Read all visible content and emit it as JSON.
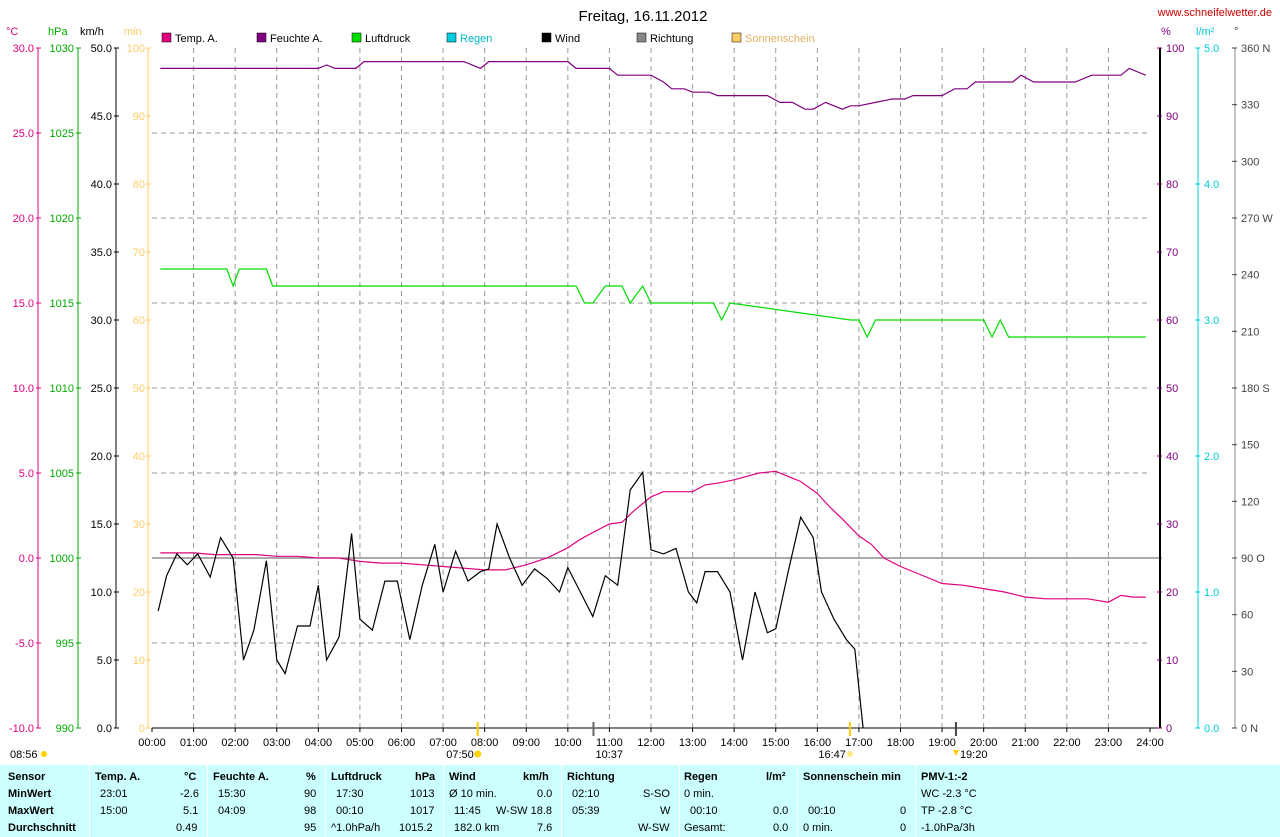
{
  "title": "Freitag, 16.11.2012",
  "site": "www.schneifelwetter.de",
  "colors": {
    "temp": "#e0007f",
    "hum": "#800080",
    "press": "#00dd00",
    "rain": "#00ccdd",
    "wind": "#000000",
    "dir": "#888888",
    "sun": "#ffcc66",
    "site": "#cc0000",
    "table_bg": "#ccffff"
  },
  "units": {
    "temp": "°C",
    "press": "hPa",
    "wind": "km/h",
    "sun": "min",
    "hum": "%",
    "rain": "l/m²",
    "dir": "°"
  },
  "legend": [
    {
      "label": "Temp. A.",
      "color": "#e0007f"
    },
    {
      "label": "Feuchte A.",
      "color": "#800080"
    },
    {
      "label": "Luftdruck",
      "color": "#00dd00"
    },
    {
      "label": "Regen",
      "color": "#00ccdd"
    },
    {
      "label": "Wind",
      "color": "#000000"
    },
    {
      "label": "Richtung",
      "color": "#888888"
    },
    {
      "label": "Sonnenschein",
      "color": "#ffcc66"
    }
  ],
  "axis_labels": {
    "temp": [
      "30.0",
      "25.0",
      "20.0",
      "15.0",
      "10.0",
      "5.0",
      "0.0",
      "-5.0",
      "-10.0"
    ],
    "press": [
      "1030",
      "1025",
      "1020",
      "1015",
      "1010",
      "1005",
      "1000",
      "995",
      "990"
    ],
    "wind": [
      "50.0",
      "45.0",
      "40.0",
      "35.0",
      "30.0",
      "25.0",
      "20.0",
      "15.0",
      "10.0",
      "5.0",
      "0.0"
    ],
    "sun": [
      "100",
      "90",
      "80",
      "70",
      "60",
      "50",
      "40",
      "30",
      "20",
      "10",
      "0"
    ],
    "hum": [
      "100",
      "90",
      "80",
      "70",
      "60",
      "50",
      "40",
      "30",
      "20",
      "10",
      "0"
    ],
    "rain": [
      "5.0",
      "4.0",
      "3.0",
      "2.0",
      "1.0",
      "0.0"
    ],
    "dir": [
      "360 N",
      "330",
      "300",
      "270 W",
      "240",
      "210",
      "180 S",
      "150",
      "120",
      "90  O",
      "60",
      "30",
      "0  N"
    ],
    "time": [
      "00:00",
      "01:00",
      "02:00",
      "03:00",
      "04:00",
      "05:00",
      "06:00",
      "07:00",
      "08:00",
      "09:00",
      "10:00",
      "11:00",
      "12:00",
      "13:00",
      "14:00",
      "15:00",
      "16:00",
      "17:00",
      "18:00",
      "19:00",
      "20:00",
      "21:00",
      "22:00",
      "23:00",
      "24:00"
    ]
  },
  "markers": {
    "left_time": "08:56",
    "sunrise": "07:50",
    "solar_noon": "10:37",
    "sunset": "16:47",
    "moon": "19:20"
  },
  "chart_data": {
    "type": "line",
    "title": "Freitag, 16.11.2012",
    "x_range": [
      "00:00",
      "24:00"
    ],
    "axes": {
      "temp": {
        "unit": "°C",
        "range": [
          -10,
          30
        ]
      },
      "press": {
        "unit": "hPa",
        "range": [
          990,
          1030
        ]
      },
      "wind": {
        "unit": "km/h",
        "range": [
          0,
          50
        ]
      },
      "hum": {
        "unit": "%",
        "range": [
          0,
          100
        ]
      },
      "rain": {
        "unit": "l/m²",
        "range": [
          0,
          5
        ]
      },
      "dir": {
        "unit": "°",
        "range": [
          0,
          360
        ]
      }
    },
    "grid": true,
    "series": [
      {
        "name": "Temp. A.",
        "axis": "temp",
        "x": [
          0.2,
          0.5,
          1.0,
          1.5,
          2.0,
          2.5,
          3.0,
          3.5,
          4.0,
          4.5,
          5.0,
          5.5,
          6.0,
          6.5,
          7.0,
          7.5,
          8.0,
          8.5,
          9.0,
          9.5,
          10.0,
          10.3,
          10.6,
          11.0,
          11.3,
          11.6,
          12.0,
          12.3,
          12.7,
          13.0,
          13.3,
          13.6,
          14.0,
          14.3,
          14.6,
          15.0,
          15.3,
          15.6,
          16.0,
          16.3,
          16.6,
          17.0,
          17.3,
          17.6,
          18.0,
          18.5,
          19.0,
          19.5,
          20.0,
          20.5,
          21.0,
          21.5,
          22.0,
          22.5,
          23.0,
          23.3,
          23.6,
          23.9
        ],
        "y": [
          0.3,
          0.3,
          0.3,
          0.2,
          0.2,
          0.2,
          0.1,
          0.1,
          0.0,
          0.0,
          -0.2,
          -0.3,
          -0.3,
          -0.4,
          -0.5,
          -0.6,
          -0.7,
          -0.7,
          -0.4,
          0.0,
          0.6,
          1.1,
          1.5,
          2.0,
          2.1,
          2.8,
          3.6,
          3.9,
          3.9,
          3.9,
          4.3,
          4.4,
          4.6,
          4.8,
          5.0,
          5.1,
          4.8,
          4.5,
          3.8,
          3.0,
          2.3,
          1.3,
          0.8,
          0.0,
          -0.5,
          -1.0,
          -1.5,
          -1.6,
          -1.8,
          -2.0,
          -2.3,
          -2.4,
          -2.4,
          -2.4,
          -2.6,
          -2.2,
          -2.3,
          -2.3
        ]
      },
      {
        "name": "Feuchte A.",
        "axis": "hum",
        "x": [
          0.2,
          4.0,
          4.2,
          4.4,
          4.9,
          5.1,
          7.0,
          7.5,
          7.9,
          8.1,
          10.0,
          10.2,
          11.0,
          11.2,
          11.6,
          12.0,
          12.3,
          12.5,
          12.8,
          13.0,
          13.4,
          13.6,
          14.0,
          14.8,
          15.1,
          15.4,
          15.7,
          15.9,
          16.2,
          16.6,
          16.8,
          17.0,
          17.4,
          17.8,
          18.1,
          18.3,
          18.7,
          19.0,
          19.3,
          19.6,
          19.8,
          20.1,
          20.7,
          20.9,
          21.2,
          21.8,
          22.2,
          22.6,
          23.0,
          23.3,
          23.5,
          23.9
        ],
        "y": [
          97,
          97,
          97.5,
          97,
          97,
          98,
          98,
          98,
          97,
          98,
          98,
          97,
          97,
          96,
          96,
          96,
          95,
          94,
          94,
          93.5,
          93.5,
          93,
          93,
          93,
          92,
          92,
          91,
          91,
          92,
          91,
          91.5,
          91.5,
          92,
          92.5,
          92.5,
          93,
          93,
          93,
          94,
          94,
          95,
          95,
          95,
          96,
          95,
          95,
          95,
          96,
          96,
          96,
          97,
          96
        ]
      },
      {
        "name": "Luftdruck",
        "axis": "press",
        "x": [
          0.2,
          1.6,
          1.8,
          1.95,
          2.1,
          2.2,
          2.6,
          2.75,
          2.9,
          10.0,
          10.2,
          10.4,
          10.6,
          10.9,
          11.1,
          11.3,
          11.5,
          11.8,
          12.0,
          12.2,
          12.6,
          13.0,
          13.2,
          13.5,
          13.7,
          13.9,
          16.8,
          17.0,
          17.2,
          17.4,
          18.2,
          18.4,
          18.6,
          18.8,
          19.0,
          19.2,
          20.0,
          20.2,
          20.4,
          20.6,
          20.8,
          21.0,
          23.9
        ],
        "y": [
          1017,
          1017,
          1017,
          1016,
          1017,
          1017,
          1017,
          1017,
          1016,
          1016,
          1016,
          1015,
          1015,
          1016,
          1016,
          1016,
          1015,
          1016,
          1015,
          1015,
          1015,
          1015,
          1015,
          1015,
          1014,
          1015,
          1014,
          1014,
          1013,
          1014,
          1014,
          1014,
          1014,
          1014,
          1014,
          1014,
          1014,
          1013,
          1014,
          1013,
          1013,
          1013,
          1013
        ]
      },
      {
        "name": "Wind",
        "axis": "wind",
        "x": [
          0.15,
          0.35,
          0.6,
          0.85,
          1.1,
          1.4,
          1.65,
          1.95,
          2.2,
          2.45,
          2.75,
          3.0,
          3.2,
          3.5,
          3.8,
          4.0,
          4.2,
          4.5,
          4.8,
          5.0,
          5.3,
          5.6,
          5.9,
          6.2,
          6.5,
          6.8,
          7.0,
          7.3,
          7.6,
          7.9,
          8.1,
          8.3,
          8.6,
          8.9,
          9.2,
          9.5,
          9.8,
          10.0,
          10.3,
          10.6,
          10.9,
          11.2,
          11.5,
          11.8,
          12.0,
          12.3,
          12.6,
          12.9,
          13.1,
          13.3,
          13.6,
          13.9,
          14.2,
          14.5,
          14.8,
          15.0,
          15.3,
          15.6,
          15.9,
          16.1,
          16.4,
          16.7,
          16.9,
          17.1
        ],
        "y": [
          8.6,
          11.2,
          12.8,
          12.0,
          12.8,
          11.1,
          14.0,
          12.5,
          5.0,
          7.2,
          12.3,
          5.0,
          4.0,
          7.5,
          7.5,
          10.5,
          5.0,
          6.7,
          14.3,
          8.0,
          7.2,
          10.8,
          10.8,
          6.5,
          10.5,
          13.5,
          10.0,
          13.0,
          10.8,
          11.5,
          11.7,
          15.0,
          12.5,
          10.5,
          11.7,
          11.0,
          10.0,
          11.8,
          10.0,
          8.2,
          11.2,
          10.5,
          17.5,
          18.8,
          13.1,
          12.8,
          13.2,
          10.0,
          9.2,
          11.5,
          11.5,
          10.0,
          5.0,
          10.0,
          7.0,
          7.3,
          11.5,
          15.5,
          14.0,
          10.0,
          8.0,
          6.5,
          5.8,
          0.0
        ]
      }
    ]
  },
  "table": {
    "rows": [
      "MinWert",
      "MaxWert",
      "Durchschnitt"
    ],
    "sensor": {
      "header": "Sensor"
    },
    "temp": {
      "header": "Temp. A.",
      "unit": "°C",
      "rows": [
        [
          "23:01",
          "-2.6"
        ],
        [
          "15:00",
          "5.1"
        ],
        [
          "",
          "0.49"
        ]
      ]
    },
    "hum": {
      "header": "Feuchte A.",
      "unit": "%",
      "rows": [
        [
          "15:30",
          "90"
        ],
        [
          "04:09",
          "98"
        ],
        [
          "",
          "95"
        ]
      ]
    },
    "press": {
      "header": "Luftdruck",
      "unit": "hPa",
      "rows": [
        [
          "17:30",
          "1013"
        ],
        [
          "00:10",
          "1017"
        ],
        [
          "^1.0hPa/h",
          "1015.2"
        ]
      ]
    },
    "wind": {
      "header": "Wind",
      "unit": "km/h",
      "rows": [
        [
          "Ø 10 min.",
          "0.0"
        ],
        [
          "11:45",
          "W-SW 18.8"
        ],
        [
          "182.0 km",
          "7.6"
        ]
      ]
    },
    "dir": {
      "header": "Richtung",
      "rows": [
        [
          "02:10",
          "S-SO"
        ],
        [
          "05:39",
          "W"
        ],
        [
          "",
          "W-SW"
        ]
      ]
    },
    "rain": {
      "header": "Regen",
      "unit": "l/m²",
      "rows": [
        [
          "0 min.",
          ""
        ],
        [
          "00:10",
          "0.0"
        ],
        [
          "Gesamt:",
          "0.0"
        ]
      ]
    },
    "sun": {
      "header": "Sonnenschein min",
      "rows": [
        [
          "00:10",
          "0"
        ],
        [
          "0 min.",
          "0"
        ]
      ]
    },
    "pmv": {
      "header": "PMV-1:-2",
      "rows": [
        "WC -2.3 °C",
        "TP -2.8 °C",
        "-1.0hPa/3h"
      ]
    }
  }
}
